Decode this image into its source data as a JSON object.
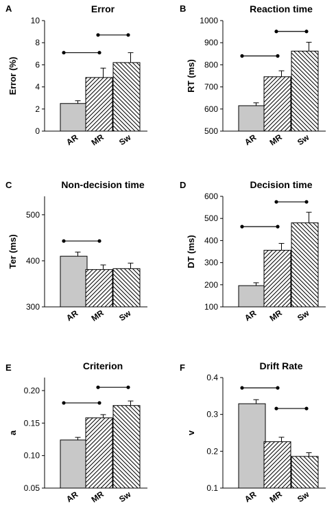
{
  "chart_data": [
    {
      "panel": "A",
      "type": "bar",
      "title": "Error",
      "ylabel": "Error (%)",
      "categories": [
        "AR",
        "MR",
        "Sw"
      ],
      "values": [
        2.5,
        4.85,
        6.2
      ],
      "errors": [
        0.25,
        0.85,
        0.9
      ],
      "patterns": [
        "solid-gray",
        "hatch-right",
        "hatch-left"
      ],
      "ylim": [
        0,
        10
      ],
      "yticks": [
        "0",
        "2",
        "4",
        "6",
        "8",
        "10"
      ],
      "significance": [
        {
          "from": "AR",
          "to": "MR",
          "level": 7.1
        },
        {
          "from": "MR",
          "to": "Sw",
          "level": 8.7
        }
      ]
    },
    {
      "panel": "B",
      "type": "bar",
      "title": "Reaction time",
      "ylabel": "RT (ms)",
      "categories": [
        "AR",
        "MR",
        "Sw"
      ],
      "values": [
        615,
        746,
        862
      ],
      "errors": [
        13,
        27,
        40
      ],
      "patterns": [
        "solid-gray",
        "hatch-right",
        "hatch-left"
      ],
      "ylim": [
        500,
        1000
      ],
      "yticks": [
        "500",
        "600",
        "700",
        "800",
        "900",
        "1000"
      ],
      "significance": [
        {
          "from": "AR",
          "to": "MR",
          "level": 840
        },
        {
          "from": "MR",
          "to": "Sw",
          "level": 951
        }
      ]
    },
    {
      "panel": "C",
      "type": "bar",
      "title": "Non-decision time",
      "ylabel": "Ter (ms)",
      "categories": [
        "AR",
        "MR",
        "Sw"
      ],
      "values": [
        410,
        381,
        383
      ],
      "errors": [
        9,
        10,
        12
      ],
      "patterns": [
        "solid-gray",
        "hatch-right",
        "hatch-left"
      ],
      "ylim": [
        300,
        540
      ],
      "yticks": [
        "300",
        "400",
        "500"
      ],
      "significance": [
        {
          "from": "AR",
          "to": "MR",
          "level": 443
        }
      ]
    },
    {
      "panel": "D",
      "type": "bar",
      "title": "Decision time",
      "ylabel": "DT (ms)",
      "categories": [
        "AR",
        "MR",
        "Sw"
      ],
      "values": [
        196,
        356,
        480
      ],
      "errors": [
        13,
        31,
        48
      ],
      "patterns": [
        "solid-gray",
        "hatch-right",
        "hatch-left"
      ],
      "ylim": [
        100,
        600
      ],
      "yticks": [
        "100",
        "200",
        "300",
        "400",
        "500",
        "600"
      ],
      "significance": [
        {
          "from": "AR",
          "to": "MR",
          "level": 463
        },
        {
          "from": "MR",
          "to": "Sw",
          "level": 575
        }
      ]
    },
    {
      "panel": "E",
      "type": "bar",
      "title": "Criterion",
      "ylabel": "a",
      "categories": [
        "AR",
        "MR",
        "Sw"
      ],
      "values": [
        0.124,
        0.158,
        0.177
      ],
      "errors": [
        0.004,
        0.005,
        0.007
      ],
      "patterns": [
        "solid-gray",
        "hatch-right",
        "hatch-left"
      ],
      "ylim": [
        0.05,
        0.22
      ],
      "yticks": [
        "0.05",
        "0.10",
        "0.15",
        "0.20"
      ],
      "significance": [
        {
          "from": "AR",
          "to": "MR",
          "level": 0.181
        },
        {
          "from": "MR",
          "to": "Sw",
          "level": 0.205
        }
      ]
    },
    {
      "panel": "F",
      "type": "bar",
      "title": "Drift Rate",
      "ylabel": "v",
      "categories": [
        "AR",
        "MR",
        "Sw"
      ],
      "values": [
        0.329,
        0.226,
        0.186
      ],
      "errors": [
        0.011,
        0.012,
        0.01
      ],
      "patterns": [
        "solid-gray",
        "hatch-right",
        "hatch-left"
      ],
      "ylim": [
        0.1,
        0.4
      ],
      "yticks": [
        "0.1",
        "0.2",
        "0.3",
        "0.4"
      ],
      "significance": [
        {
          "from": "AR",
          "to": "MR",
          "level": 0.372
        },
        {
          "from": "MR",
          "to": "Sw",
          "level": 0.316
        }
      ]
    }
  ],
  "colors": {
    "bar_fill": "#c8c8c8",
    "hatch_background": "#ffffff",
    "stroke": "#000000",
    "background": "#ffffff"
  }
}
